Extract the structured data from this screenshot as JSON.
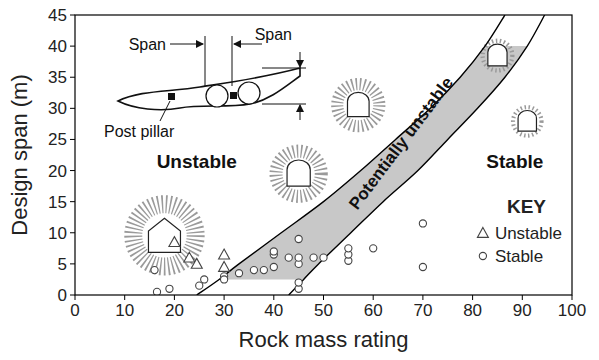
{
  "chart_data": {
    "type": "scatter",
    "xlabel": "Rock mass rating",
    "ylabel": "Design span (m)",
    "xlim": [
      0,
      100
    ],
    "xticks": [
      0,
      10,
      20,
      30,
      40,
      50,
      60,
      70,
      80,
      90,
      100
    ],
    "ylim": [
      0,
      45
    ],
    "yticks": [
      0,
      5,
      10,
      15,
      20,
      25,
      30,
      35,
      40,
      45
    ],
    "grid": false,
    "legend": "lower right",
    "legend_title": "KEY",
    "annotations": [
      "Unstable",
      "Stable"
    ],
    "inset_labels": [
      "Span",
      "Span",
      "Post pillar"
    ],
    "band": {
      "label": "Potentially unstable",
      "color": "#c8c8c8",
      "ylim": [
        2.5,
        40
      ]
    },
    "series": [
      {
        "type": "line",
        "color": "#000000",
        "x": [
          24.5,
          29,
          33,
          41.5,
          50,
          57.5,
          64.5,
          71.5,
          77.5,
          82.5,
          86.5
        ],
        "values": [
          0,
          2.5,
          5,
          10,
          15,
          20,
          25,
          30,
          35,
          40,
          45
        ]
      },
      {
        "type": "line",
        "color": "#000000",
        "x": [
          43,
          46,
          49,
          55.5,
          62,
          69,
          75,
          81,
          86.5,
          91,
          94.5
        ],
        "values": [
          0,
          2.5,
          5,
          10,
          15,
          20,
          25,
          30,
          35,
          40,
          45
        ]
      },
      {
        "name": "Unstable",
        "type": "scatter",
        "marker": "triangle",
        "color": "#444444",
        "x": [
          20,
          23,
          24.5,
          30,
          30
        ],
        "values": [
          8.5,
          6,
          5,
          6.5,
          4.5
        ]
      },
      {
        "name": "Stable",
        "type": "scatter",
        "marker": "circle",
        "color": "#444444",
        "x": [
          16,
          16.5,
          19,
          25,
          26,
          30,
          30,
          33,
          36,
          38,
          40,
          40,
          40,
          43,
          45,
          45,
          45,
          45,
          45,
          48,
          50,
          55,
          55,
          55,
          60,
          70,
          70
        ],
        "values": [
          4,
          0.5,
          1,
          1.5,
          2.5,
          3,
          2.5,
          3.5,
          4,
          4,
          4.5,
          6.5,
          7,
          6,
          1,
          2,
          5,
          6,
          9,
          6,
          6,
          5.5,
          6.5,
          7.5,
          7.5,
          11.5,
          4.5
        ]
      }
    ]
  }
}
